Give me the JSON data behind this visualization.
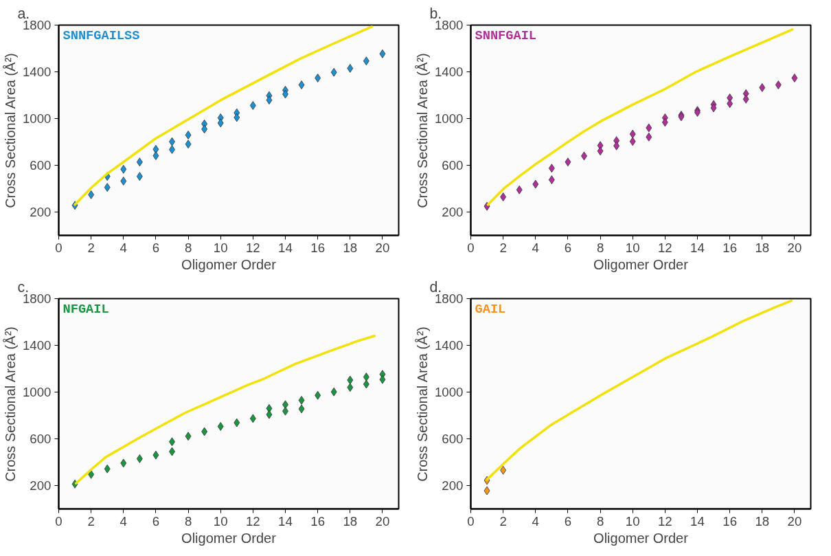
{
  "chart_data": [
    {
      "type": "scatter",
      "title": "a.",
      "xlabel": "Oligomer Order",
      "ylabel": "Cross Sectional Area (Å²)",
      "xlim": [
        0,
        21
      ],
      "ylim": [
        0,
        1800
      ],
      "xticks": [
        0,
        2,
        4,
        6,
        8,
        10,
        12,
        14,
        16,
        18,
        20
      ],
      "yticks": [
        200,
        600,
        1000,
        1400,
        1800
      ],
      "series": [
        {
          "name": "SNNFGAILSS",
          "color": "#1e90d0",
          "marker": "diamond",
          "x": [
            1,
            2,
            3,
            3,
            4,
            4,
            5,
            5,
            6,
            6,
            7,
            7,
            8,
            8,
            9,
            9,
            10,
            10,
            11,
            11,
            12,
            13,
            13,
            14,
            14,
            15,
            16,
            17,
            18,
            19,
            20
          ],
          "values": [
            257,
            348,
            505,
            411,
            566,
            465,
            628,
            505,
            737,
            682,
            802,
            735,
            859,
            781,
            954,
            910,
            1006,
            962,
            1049,
            1009,
            1112,
            1196,
            1158,
            1242,
            1209,
            1288,
            1347,
            1396,
            1430,
            1493,
            1554
          ]
        },
        {
          "color": "#f2e20a",
          "type": "line",
          "x": [
            1,
            2,
            3,
            4.06,
            5.97,
            8.03,
            10.01,
            13.03,
            14.94,
            16.85,
            19.35
          ],
          "values": [
            263,
            406,
            529,
            634,
            828,
            996,
            1158,
            1377,
            1514,
            1634,
            1787
          ]
        }
      ]
    },
    {
      "type": "scatter",
      "title": "b.",
      "xlabel": "Oligomer Order",
      "ylabel": "Cross Sectional Area (Å²)",
      "xlim": [
        0,
        21
      ],
      "ylim": [
        0,
        1800
      ],
      "xticks": [
        0,
        2,
        4,
        6,
        8,
        10,
        12,
        14,
        16,
        18,
        20
      ],
      "yticks": [
        200,
        600,
        1000,
        1400,
        1800
      ],
      "series": [
        {
          "name": "SNNFGAIL",
          "color": "#b0309a",
          "marker": "diamond",
          "x": [
            1,
            2,
            3,
            4,
            5,
            5,
            6,
            7,
            8,
            8,
            9,
            9,
            10,
            10,
            11,
            11,
            12,
            12,
            13,
            13,
            14,
            14,
            15,
            15,
            16,
            16,
            17,
            17,
            18,
            19,
            20
          ],
          "values": [
            249,
            329,
            390,
            438,
            575,
            476,
            628,
            680,
            769,
            722,
            811,
            766,
            867,
            804,
            920,
            842,
            1006,
            968,
            1029,
            1015,
            1069,
            1053,
            1120,
            1091,
            1177,
            1128,
            1213,
            1166,
            1265,
            1288,
            1347
          ]
        },
        {
          "color": "#f2e20a",
          "type": "line",
          "x": [
            1.06,
            2,
            3.03,
            4.06,
            5.97,
            7,
            8.03,
            10.01,
            12,
            13.9,
            15.82,
            17.88,
            19.87
          ],
          "values": [
            263,
            396,
            510,
            615,
            796,
            891,
            977,
            1120,
            1253,
            1400,
            1520,
            1644,
            1762
          ]
        }
      ]
    },
    {
      "type": "scatter",
      "title": "c.",
      "xlabel": "Oligomer Order",
      "ylabel": "Cross Sectional Area (Å²)",
      "xlim": [
        0,
        21
      ],
      "ylim": [
        0,
        1800
      ],
      "xticks": [
        0,
        2,
        4,
        6,
        8,
        10,
        12,
        14,
        16,
        18,
        20
      ],
      "yticks": [
        200,
        600,
        1000,
        1400,
        1800
      ],
      "series": [
        {
          "name": "NFGAIL",
          "color": "#1a9641",
          "marker": "diamond",
          "x": [
            1,
            2,
            3,
            4,
            5,
            6,
            7,
            7,
            8,
            9,
            10,
            11,
            12,
            13,
            13,
            14,
            14,
            15,
            15,
            16,
            17,
            18,
            18,
            19,
            19,
            20,
            20
          ],
          "values": [
            213,
            295,
            343,
            392,
            430,
            461,
            575,
            491,
            622,
            662,
            706,
            738,
            774,
            860,
            808,
            892,
            837,
            930,
            856,
            972,
            1002,
            1103,
            1040,
            1129,
            1068,
            1152,
            1108
          ]
        },
        {
          "color": "#f2e20a",
          "type": "line",
          "x": [
            1.07,
            2,
            2.89,
            4.9,
            5.9,
            7.8,
            9.8,
            11.7,
            12.7,
            14.6,
            16.6,
            18.5,
            19.5
          ],
          "values": [
            219,
            337,
            442,
            603,
            679,
            822,
            945,
            1063,
            1116,
            1240,
            1344,
            1439,
            1481
          ]
        }
      ]
    },
    {
      "type": "scatter",
      "title": "d.",
      "xlabel": "Oligomer Order",
      "ylabel": "Cross Sectional Area (Å²)",
      "xlim": [
        0,
        21
      ],
      "ylim": [
        0,
        1800
      ],
      "xticks": [
        0,
        2,
        4,
        6,
        8,
        10,
        12,
        14,
        16,
        18,
        20
      ],
      "yticks": [
        200,
        600,
        1000,
        1400,
        1800
      ],
      "series": [
        {
          "name": "GAIL",
          "color": "#f7941d",
          "marker": "diamond",
          "x": [
            1,
            1,
            2
          ],
          "values": [
            244,
            156,
            331
          ]
        },
        {
          "color": "#f2e20a",
          "type": "line",
          "x": [
            1,
            2,
            3.03,
            4.94,
            8.03,
            12,
            14.94,
            16.85,
            18.76,
            19.8
          ],
          "values": [
            251,
            384,
            517,
            717,
            973,
            1287,
            1477,
            1610,
            1724,
            1781
          ]
        }
      ]
    }
  ]
}
